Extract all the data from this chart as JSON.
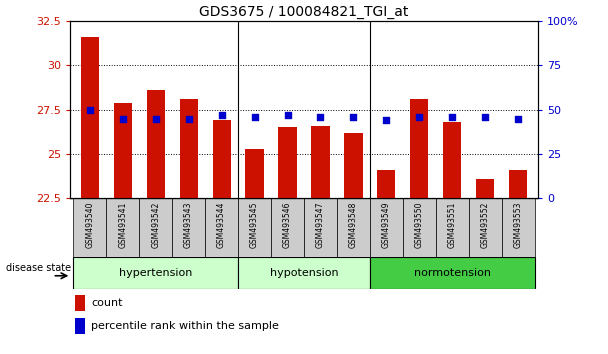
{
  "title": "GDS3675 / 100084821_TGI_at",
  "samples": [
    "GSM493540",
    "GSM493541",
    "GSM493542",
    "GSM493543",
    "GSM493544",
    "GSM493545",
    "GSM493546",
    "GSM493547",
    "GSM493548",
    "GSM493549",
    "GSM493550",
    "GSM493551",
    "GSM493552",
    "GSM493553"
  ],
  "counts": [
    31.6,
    27.9,
    28.6,
    28.1,
    26.9,
    25.3,
    26.5,
    26.6,
    26.2,
    24.1,
    28.1,
    26.8,
    23.6,
    24.1
  ],
  "percentiles": [
    50,
    45,
    45,
    45,
    47,
    46,
    47,
    46,
    46,
    44,
    46,
    46,
    46,
    45
  ],
  "bar_color": "#cc1100",
  "dot_color": "#0000cc",
  "ylim_left": [
    22.5,
    32.5
  ],
  "ylim_right": [
    0,
    100
  ],
  "yticks_left": [
    22.5,
    25.0,
    27.5,
    30.0,
    32.5
  ],
  "yticks_right": [
    0,
    25,
    50,
    75,
    100
  ],
  "ytick_labels_left": [
    "22.5",
    "25",
    "27.5",
    "30",
    "32.5"
  ],
  "ytick_labels_right": [
    "0",
    "25",
    "50",
    "75",
    "100%"
  ],
  "group_defs": [
    [
      0,
      4,
      "hypertension",
      "#ccffcc"
    ],
    [
      5,
      8,
      "hypotension",
      "#ccffcc"
    ],
    [
      9,
      13,
      "normotension",
      "#44cc44"
    ]
  ],
  "group_dividers": [
    4.5,
    8.5
  ],
  "disease_state_label": "disease state",
  "legend_count_label": "count",
  "legend_percentile_label": "percentile rank within the sample",
  "background_color": "#ffffff",
  "xtick_bg_color": "#cccccc",
  "bar_width": 0.55
}
